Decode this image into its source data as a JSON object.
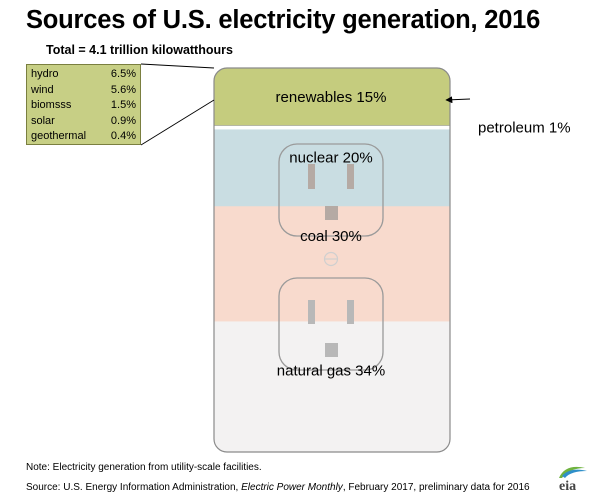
{
  "title": "Sources of U.S. electricity generation, 2016",
  "total": "Total = 4.1 trillion kilowatthours",
  "breakdown": [
    {
      "name": "hydro",
      "value": "6.5%"
    },
    {
      "name": "wind",
      "value": "5.6%"
    },
    {
      "name": "biomsss",
      "value": "1.5%"
    },
    {
      "name": "solar",
      "value": "0.9%"
    },
    {
      "name": "geothermal",
      "value": "0.4%"
    }
  ],
  "note": "Note: Electricity generation from utility-scale facilities.",
  "source_prefix": "Source: U.S. Energy Information Administration, ",
  "source_italic": "Electric Power Monthly",
  "source_suffix": ", February 2017, preliminary data for 2016",
  "logo": "eia",
  "colors": {
    "renewables": "#c5cc7e",
    "petroleum": "#ffffff",
    "nuclear": "#c9dde2",
    "coal": "#f8dacd",
    "natural_gas": "#f3f2f2",
    "outline": "#8a8a8a"
  },
  "chart_data": {
    "type": "stacked-bar",
    "title": "Sources of U.S. electricity generation, 2016",
    "unit": "%",
    "total": "4.1 trillion kilowatthours",
    "segments": [
      {
        "label": "renewables 15%",
        "name": "renewables",
        "value": 15,
        "color": "#c5cc7e"
      },
      {
        "label": "petroleum 1%",
        "name": "petroleum",
        "value": 1,
        "color": "#ffffff"
      },
      {
        "label": "nuclear 20%",
        "name": "nuclear",
        "value": 20,
        "color": "#c9dde2"
      },
      {
        "label": "coal 30%",
        "name": "coal",
        "value": 30,
        "color": "#f8dacd"
      },
      {
        "label": "natural gas 34%",
        "name": "natural gas",
        "value": 34,
        "color": "#f3f2f2"
      }
    ],
    "renewables_breakdown": [
      {
        "name": "hydro",
        "value": 6.5
      },
      {
        "name": "wind",
        "value": 5.6
      },
      {
        "name": "biomsss",
        "value": 1.5
      },
      {
        "name": "solar",
        "value": 0.9
      },
      {
        "name": "geothermal",
        "value": 0.4
      }
    ]
  }
}
